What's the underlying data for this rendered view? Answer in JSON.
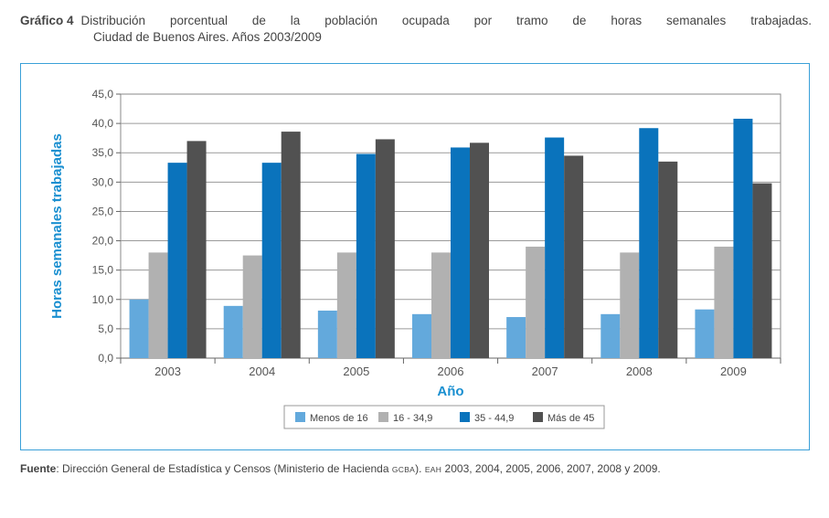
{
  "heading": {
    "label": "Gráfico 4",
    "title_line1": "Distribución porcentual de la población ocupada por tramo de horas semanales trabajadas.",
    "title_line2": "Ciudad de Buenos Aires. Años 2003/2009"
  },
  "source": {
    "label": "Fuente",
    "separator": ": ",
    "text1": "Dirección General de Estadística y Censos (Ministerio de Hacienda ",
    "small1": "GCBA",
    "text2": "). ",
    "small2": "EAH",
    "text3": " 2003, 2004, 2005, 2006, 2007, 2008 y 2009."
  },
  "chart_data": {
    "type": "bar",
    "xlabel": "Año",
    "ylabel": "Horas semanales trabajadas",
    "ylim": [
      0,
      45
    ],
    "yticks": [
      "0,0",
      "5,0",
      "10,0",
      "15,0",
      "20,0",
      "25,0",
      "30,0",
      "35,0",
      "40,0",
      "45,0"
    ],
    "grid": true,
    "legend_position": "bottom",
    "categories": [
      "2003",
      "2004",
      "2005",
      "2006",
      "2007",
      "2008",
      "2009"
    ],
    "series": [
      {
        "name": "Menos de 16",
        "color": "#63a9dc",
        "values": [
          10.0,
          8.9,
          8.1,
          7.5,
          7.0,
          7.5,
          8.3
        ]
      },
      {
        "name": "16 - 34,9",
        "color": "#b1b1b1",
        "values": [
          18.0,
          17.5,
          18.0,
          18.0,
          19.0,
          18.0,
          19.0
        ]
      },
      {
        "name": "35 - 44,9",
        "color": "#0a73bc",
        "values": [
          33.3,
          33.3,
          34.8,
          35.9,
          37.6,
          39.2,
          40.8
        ]
      },
      {
        "name": "Más de 45",
        "color": "#515151",
        "values": [
          37.0,
          38.6,
          37.3,
          36.7,
          34.5,
          33.5,
          29.8
        ]
      }
    ],
    "axis_label_color": "#1a8fd0"
  }
}
